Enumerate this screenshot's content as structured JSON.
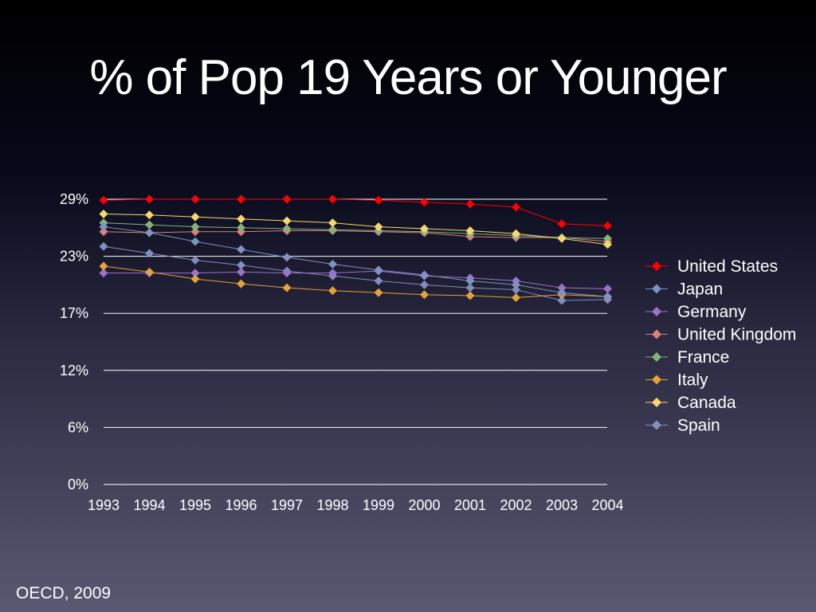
{
  "slide": {
    "title": "% of Pop 19 Years or Younger",
    "source": "OECD, 2009"
  },
  "chart_data": {
    "type": "line",
    "title": "% of Pop 19 Years or Younger",
    "xlabel": "",
    "ylabel": "",
    "x": [
      "1993",
      "1994",
      "1995",
      "1996",
      "1997",
      "1998",
      "1999",
      "2000",
      "2001",
      "2002",
      "2003",
      "2004"
    ],
    "yticks": [
      "0%",
      "6%",
      "12%",
      "17%",
      "23%",
      "29%"
    ],
    "ylim": [
      0,
      29
    ],
    "grid": true,
    "legend_position": "right",
    "series": [
      {
        "name": "United States",
        "color": "#ff0000",
        "values": [
          28.9,
          29.0,
          29.0,
          29.0,
          29.0,
          29.0,
          28.9,
          28.7,
          28.5,
          28.2,
          26.5,
          26.3
        ]
      },
      {
        "name": "Japan",
        "color": "#7f8ebf",
        "values": [
          24.2,
          23.5,
          22.8,
          22.3,
          21.7,
          21.2,
          20.7,
          20.3,
          20.0,
          19.8,
          18.7,
          18.8
        ]
      },
      {
        "name": "Germany",
        "color": "#9b72c9",
        "values": [
          21.5,
          21.5,
          21.5,
          21.6,
          21.5,
          21.5,
          21.7,
          21.2,
          21.0,
          20.7,
          20.0,
          19.9
        ]
      },
      {
        "name": "United Kingdom",
        "color": "#d9807a",
        "values": [
          25.7,
          25.6,
          25.7,
          25.7,
          25.8,
          25.8,
          25.7,
          25.6,
          25.2,
          25.1,
          25.1,
          24.7
        ]
      },
      {
        "name": "France",
        "color": "#84b37a",
        "values": [
          26.6,
          26.4,
          26.2,
          26.1,
          26.0,
          25.9,
          25.8,
          25.7,
          25.5,
          25.3,
          25.1,
          25.0
        ]
      },
      {
        "name": "Italy",
        "color": "#e3a13a",
        "values": [
          22.2,
          21.6,
          20.9,
          20.4,
          20.0,
          19.7,
          19.5,
          19.3,
          19.2,
          19.0,
          19.3,
          19.1
        ]
      },
      {
        "name": "Canada",
        "color": "#f5d76e",
        "values": [
          27.5,
          27.4,
          27.2,
          27.0,
          26.8,
          26.6,
          26.2,
          26.0,
          25.8,
          25.5,
          25.0,
          24.4
        ]
      },
      {
        "name": "Spain",
        "color": "#7f93bf",
        "values": [
          26.2,
          25.6,
          24.7,
          23.9,
          23.1,
          22.4,
          21.8,
          21.3,
          20.7,
          20.3,
          19.5,
          19.1
        ]
      }
    ]
  }
}
